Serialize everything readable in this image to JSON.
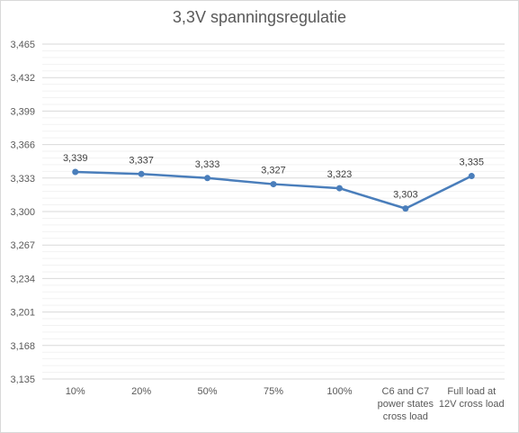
{
  "chart_data": {
    "type": "line",
    "title": "3,3V spanningsregulatie",
    "categories": [
      [
        "10%"
      ],
      [
        "20%"
      ],
      [
        "50%"
      ],
      [
        "75%"
      ],
      [
        "100%"
      ],
      [
        "C6 and C7",
        "power states",
        "cross load"
      ],
      [
        "Full load at",
        "12V cross load"
      ]
    ],
    "series": [
      {
        "values": [
          3.339,
          3.337,
          3.333,
          3.327,
          3.323,
          3.303,
          3.335
        ],
        "value_labels": [
          "3,339",
          "3,337",
          "3,333",
          "3,327",
          "3,323",
          "3,303",
          "3,335"
        ],
        "color": "#4a7ebb"
      }
    ],
    "ylim": [
      3.135,
      3.465
    ],
    "y_ticks": [
      3.135,
      3.168,
      3.201,
      3.234,
      3.267,
      3.3,
      3.333,
      3.366,
      3.399,
      3.432,
      3.465
    ],
    "y_tick_labels": [
      "3,135",
      "3,168",
      "3,201",
      "3,234",
      "3,267",
      "3,300",
      "3,333",
      "3,366",
      "3,399",
      "3,432",
      "3,465"
    ],
    "grid": true,
    "minor_grid": true,
    "legend": "none",
    "xlabel": "",
    "ylabel": ""
  }
}
